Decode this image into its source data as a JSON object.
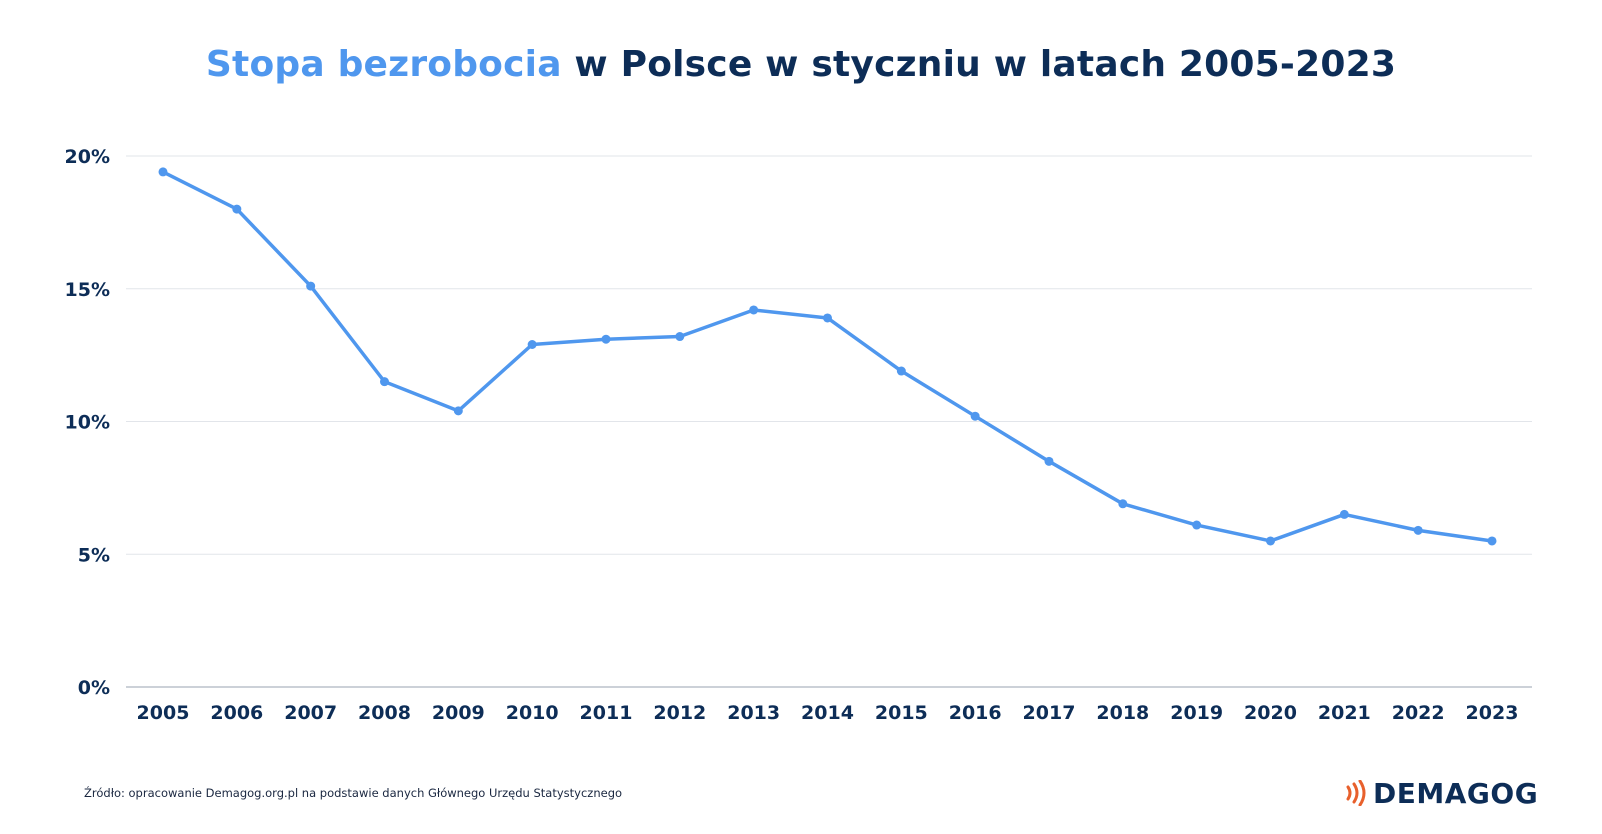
{
  "title": {
    "accent": "Stopa bezrobocia",
    "rest": " w Polsce w styczniu w latach 2005-2023"
  },
  "colors": {
    "title_accent": "#4f97ee",
    "title_main": "#0d2d57",
    "line": "#4f97ee",
    "grid": "#e2e5ea",
    "axis": "#9aa3b0",
    "logo_mark": "#e8602c"
  },
  "chart_data": {
    "type": "line",
    "title": "Stopa bezrobocia w Polsce w styczniu w latach 2005-2023",
    "xlabel": "",
    "ylabel": "",
    "categories": [
      "2005",
      "2006",
      "2007",
      "2008",
      "2009",
      "2010",
      "2011",
      "2012",
      "2013",
      "2014",
      "2015",
      "2016",
      "2017",
      "2018",
      "2019",
      "2020",
      "2021",
      "2022",
      "2023"
    ],
    "series": [
      {
        "values": [
          19.4,
          18.0,
          15.1,
          11.5,
          10.4,
          12.9,
          13.1,
          13.2,
          14.2,
          13.9,
          11.9,
          10.2,
          8.5,
          6.9,
          6.1,
          5.5,
          6.5,
          5.9,
          5.5
        ]
      }
    ],
    "ylim": [
      0,
      20
    ],
    "yticks": [
      0,
      5,
      10,
      15,
      20
    ],
    "ytick_labels": [
      "0%",
      "5%",
      "10%",
      "15%",
      "20%"
    ],
    "grid": true,
    "legend": "none"
  },
  "footer": {
    "source": "Źródło: opracowanie Demagog.org.pl na podstawie danych Głównego Urzędu Statystycznego",
    "logo_text": "DEMAGOG",
    "logo_icon": "sound-waves-icon"
  }
}
